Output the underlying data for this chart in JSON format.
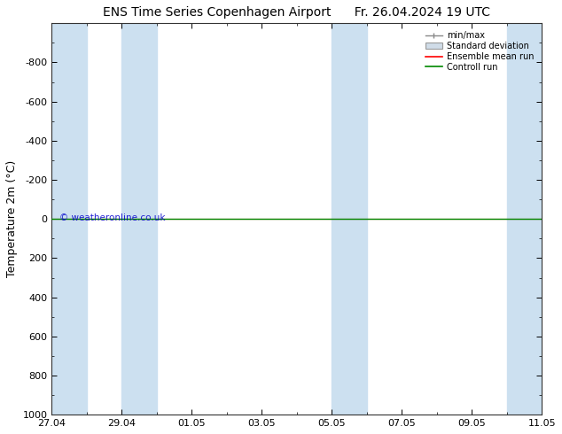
{
  "title_left": "ENS Time Series Copenhagen Airport",
  "title_right": "Fr. 26.04.2024 19 UTC",
  "ylabel": "Temperature 2m (°C)",
  "watermark": "© weatheronline.co.uk",
  "ylim_bottom": 1000,
  "ylim_top": -1000,
  "yticks": [
    -800,
    -600,
    -400,
    -200,
    0,
    200,
    400,
    600,
    800,
    1000
  ],
  "x_start": 0,
  "x_end": 14,
  "xtick_labels": [
    "27.04",
    "29.04",
    "01.05",
    "03.05",
    "05.05",
    "07.05",
    "09.05",
    "11.05"
  ],
  "xtick_positions": [
    0,
    2,
    4,
    6,
    8,
    10,
    12,
    14
  ],
  "shaded_bands": [
    [
      0,
      1
    ],
    [
      2,
      3
    ],
    [
      8,
      9
    ],
    [
      13,
      14
    ]
  ],
  "band_color": "#cce0f0",
  "control_run_y": 0,
  "ensemble_mean_y": 0,
  "control_run_color": "#008800",
  "ensemble_mean_color": "#ff0000",
  "background_color": "#ffffff",
  "plot_bg_color": "#ffffff",
  "legend_items": [
    "min/max",
    "Standard deviation",
    "Ensemble mean run",
    "Controll run"
  ],
  "legend_colors": [
    "#aaaaaa",
    "#cccccc",
    "#ff0000",
    "#008800"
  ],
  "title_fontsize": 10,
  "axis_fontsize": 9,
  "tick_fontsize": 8
}
